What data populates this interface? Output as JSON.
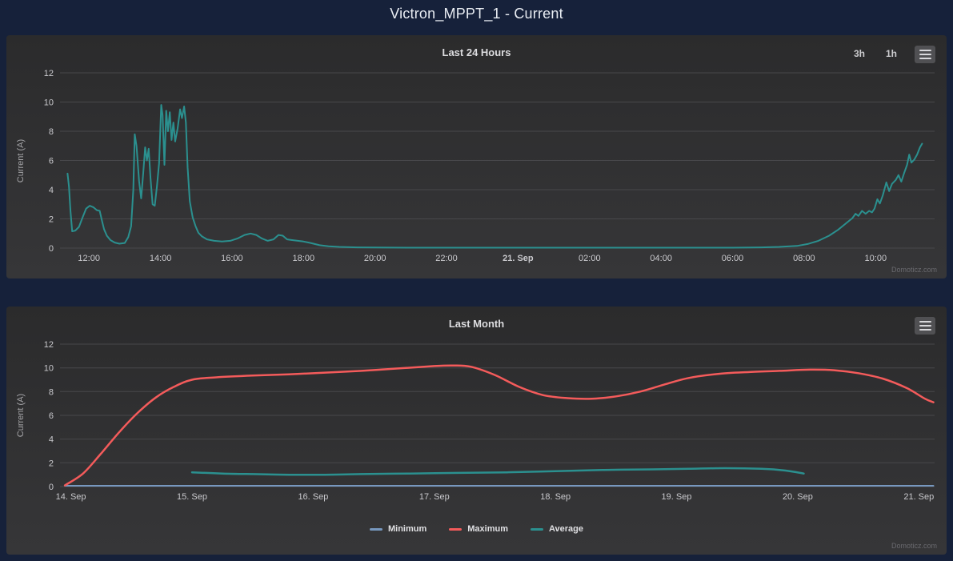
{
  "page": {
    "title": "Victron_MPPT_1 - Current"
  },
  "colors": {
    "page_background": "#16213a",
    "panel_top": "#2b2b2c",
    "panel_bottom": "#363638",
    "grid": "#48484b",
    "tick_label": "#c9c9cd",
    "axis_title": "#a5a5a8",
    "chart_title": "#dcdcdf",
    "page_title": "#e8ecf2",
    "credit": "#6a6a6f",
    "button_text": "#cccccf",
    "context_button_bg": "#505053",
    "context_button_line": "#d8d8db",
    "legend_text": "#e0e0e3",
    "series_teal": "#2b908f",
    "series_red": "#f45b5b",
    "series_blue": "#7798bf"
  },
  "chart_data": [
    {
      "id": "last-24-hours",
      "type": "line",
      "title": "Last 24 Hours",
      "ylabel": "Current (A)",
      "ylim": [
        0,
        12
      ],
      "yticks": [
        0,
        2,
        4,
        6,
        8,
        10,
        12
      ],
      "xlim": [
        11.19,
        35.65
      ],
      "x_unit": "hour-of-timeline",
      "grid": "horizontal",
      "legend": null,
      "credit": "Domoticz.com",
      "range_buttons": [
        "3h",
        "1h"
      ],
      "xticks": [
        {
          "x": 12,
          "label": "12:00"
        },
        {
          "x": 14,
          "label": "14:00"
        },
        {
          "x": 16,
          "label": "16:00"
        },
        {
          "x": 18,
          "label": "18:00"
        },
        {
          "x": 20,
          "label": "20:00"
        },
        {
          "x": 22,
          "label": "22:00"
        },
        {
          "x": 24,
          "label": "21. Sep",
          "bold": true
        },
        {
          "x": 26,
          "label": "02:00"
        },
        {
          "x": 28,
          "label": "04:00"
        },
        {
          "x": 30,
          "label": "06:00"
        },
        {
          "x": 32,
          "label": "08:00"
        },
        {
          "x": 34,
          "label": "10:00"
        }
      ],
      "series": [
        {
          "name": "Current",
          "color": "#2b908f",
          "width": 2,
          "smooth": false,
          "points": [
            [
              11.4,
              5.1
            ],
            [
              11.44,
              4.2
            ],
            [
              11.48,
              2.6
            ],
            [
              11.53,
              1.15
            ],
            [
              11.62,
              1.2
            ],
            [
              11.72,
              1.45
            ],
            [
              11.82,
              2.1
            ],
            [
              11.92,
              2.7
            ],
            [
              12.02,
              2.9
            ],
            [
              12.12,
              2.8
            ],
            [
              12.22,
              2.6
            ],
            [
              12.3,
              2.55
            ],
            [
              12.36,
              1.9
            ],
            [
              12.42,
              1.3
            ],
            [
              12.5,
              0.85
            ],
            [
              12.6,
              0.55
            ],
            [
              12.72,
              0.38
            ],
            [
              12.85,
              0.3
            ],
            [
              13.0,
              0.35
            ],
            [
              13.1,
              0.75
            ],
            [
              13.18,
              1.5
            ],
            [
              13.24,
              4.0
            ],
            [
              13.28,
              7.8
            ],
            [
              13.33,
              7.0
            ],
            [
              13.4,
              4.6
            ],
            [
              13.46,
              3.4
            ],
            [
              13.52,
              5.2
            ],
            [
              13.57,
              6.9
            ],
            [
              13.62,
              6.0
            ],
            [
              13.67,
              6.8
            ],
            [
              13.72,
              4.8
            ],
            [
              13.78,
              3.0
            ],
            [
              13.84,
              2.9
            ],
            [
              13.9,
              4.2
            ],
            [
              13.96,
              5.8
            ],
            [
              14.02,
              9.8
            ],
            [
              14.06,
              9.1
            ],
            [
              14.11,
              5.7
            ],
            [
              14.16,
              9.4
            ],
            [
              14.21,
              8.0
            ],
            [
              14.26,
              9.3
            ],
            [
              14.31,
              7.4
            ],
            [
              14.36,
              8.6
            ],
            [
              14.41,
              7.3
            ],
            [
              14.48,
              8.2
            ],
            [
              14.55,
              9.5
            ],
            [
              14.6,
              8.9
            ],
            [
              14.66,
              9.7
            ],
            [
              14.71,
              8.6
            ],
            [
              14.76,
              5.5
            ],
            [
              14.82,
              3.2
            ],
            [
              14.9,
              2.1
            ],
            [
              14.98,
              1.5
            ],
            [
              15.06,
              1.05
            ],
            [
              15.16,
              0.8
            ],
            [
              15.3,
              0.6
            ],
            [
              15.5,
              0.5
            ],
            [
              15.72,
              0.45
            ],
            [
              15.95,
              0.5
            ],
            [
              16.15,
              0.65
            ],
            [
              16.35,
              0.9
            ],
            [
              16.52,
              1.0
            ],
            [
              16.68,
              0.9
            ],
            [
              16.84,
              0.65
            ],
            [
              17.0,
              0.5
            ],
            [
              17.16,
              0.6
            ],
            [
              17.3,
              0.9
            ],
            [
              17.42,
              0.85
            ],
            [
              17.54,
              0.6
            ],
            [
              17.68,
              0.55
            ],
            [
              17.84,
              0.5
            ],
            [
              18.0,
              0.45
            ],
            [
              18.2,
              0.35
            ],
            [
              18.45,
              0.2
            ],
            [
              18.7,
              0.12
            ],
            [
              19.0,
              0.08
            ],
            [
              19.5,
              0.05
            ],
            [
              20.0,
              0.04
            ],
            [
              21.0,
              0.03
            ],
            [
              22.0,
              0.03
            ],
            [
              23.0,
              0.03
            ],
            [
              24.0,
              0.03
            ],
            [
              25.0,
              0.03
            ],
            [
              26.0,
              0.03
            ],
            [
              27.0,
              0.03
            ],
            [
              28.0,
              0.03
            ],
            [
              29.0,
              0.03
            ],
            [
              30.0,
              0.03
            ],
            [
              30.8,
              0.05
            ],
            [
              31.3,
              0.08
            ],
            [
              31.8,
              0.15
            ],
            [
              32.1,
              0.28
            ],
            [
              32.4,
              0.5
            ],
            [
              32.7,
              0.85
            ],
            [
              32.95,
              1.25
            ],
            [
              33.15,
              1.65
            ],
            [
              33.35,
              2.05
            ],
            [
              33.44,
              2.35
            ],
            [
              33.52,
              2.2
            ],
            [
              33.62,
              2.55
            ],
            [
              33.72,
              2.35
            ],
            [
              33.82,
              2.55
            ],
            [
              33.9,
              2.45
            ],
            [
              33.97,
              2.7
            ],
            [
              34.05,
              3.35
            ],
            [
              34.12,
              3.05
            ],
            [
              34.2,
              3.6
            ],
            [
              34.3,
              4.5
            ],
            [
              34.38,
              3.9
            ],
            [
              34.46,
              4.4
            ],
            [
              34.56,
              4.65
            ],
            [
              34.64,
              5.0
            ],
            [
              34.72,
              4.55
            ],
            [
              34.8,
              5.15
            ],
            [
              34.88,
              5.7
            ],
            [
              34.94,
              6.4
            ],
            [
              35.0,
              5.85
            ],
            [
              35.08,
              6.05
            ],
            [
              35.16,
              6.4
            ],
            [
              35.24,
              6.9
            ],
            [
              35.3,
              7.15
            ]
          ]
        }
      ]
    },
    {
      "id": "last-month",
      "type": "line",
      "title": "Last Month",
      "ylabel": "Current (A)",
      "ylim": [
        0,
        12
      ],
      "yticks": [
        0,
        2,
        4,
        6,
        8,
        10,
        12
      ],
      "xlim": [
        13.91,
        21.13
      ],
      "x_unit": "day-of-september",
      "grid": "horizontal",
      "legend": "bottom",
      "credit": "Domoticz.com",
      "xticks": [
        {
          "x": 14,
          "label": "14. Sep"
        },
        {
          "x": 15,
          "label": "15. Sep"
        },
        {
          "x": 16,
          "label": "16. Sep"
        },
        {
          "x": 17,
          "label": "17. Sep"
        },
        {
          "x": 18,
          "label": "18. Sep"
        },
        {
          "x": 19,
          "label": "19. Sep"
        },
        {
          "x": 20,
          "label": "20. Sep"
        },
        {
          "x": 21,
          "label": "21. Sep"
        }
      ],
      "series": [
        {
          "name": "Minimum",
          "color": "#7798bf",
          "width": 2,
          "smooth": false,
          "points": [
            [
              13.95,
              0.07
            ],
            [
              21.12,
              0.07
            ]
          ]
        },
        {
          "name": "Maximum",
          "color": "#f45b5b",
          "width": 2.5,
          "smooth": true,
          "points": [
            [
              13.95,
              0.1
            ],
            [
              14.1,
              1.1
            ],
            [
              14.25,
              2.8
            ],
            [
              14.4,
              4.6
            ],
            [
              14.55,
              6.2
            ],
            [
              14.7,
              7.5
            ],
            [
              14.85,
              8.4
            ],
            [
              15.0,
              9.0
            ],
            [
              15.2,
              9.2
            ],
            [
              15.5,
              9.35
            ],
            [
              15.8,
              9.45
            ],
            [
              16.1,
              9.6
            ],
            [
              16.4,
              9.75
            ],
            [
              16.7,
              9.95
            ],
            [
              17.0,
              10.15
            ],
            [
              17.15,
              10.2
            ],
            [
              17.3,
              10.1
            ],
            [
              17.5,
              9.4
            ],
            [
              17.7,
              8.4
            ],
            [
              17.9,
              7.7
            ],
            [
              18.1,
              7.45
            ],
            [
              18.3,
              7.4
            ],
            [
              18.5,
              7.6
            ],
            [
              18.7,
              8.0
            ],
            [
              18.9,
              8.6
            ],
            [
              19.1,
              9.15
            ],
            [
              19.35,
              9.5
            ],
            [
              19.6,
              9.65
            ],
            [
              19.85,
              9.75
            ],
            [
              20.1,
              9.85
            ],
            [
              20.3,
              9.8
            ],
            [
              20.5,
              9.55
            ],
            [
              20.7,
              9.1
            ],
            [
              20.9,
              8.3
            ],
            [
              21.05,
              7.4
            ],
            [
              21.12,
              7.1
            ]
          ]
        },
        {
          "name": "Average",
          "color": "#2b908f",
          "width": 2.5,
          "smooth": true,
          "points": [
            [
              15.0,
              1.2
            ],
            [
              15.25,
              1.1
            ],
            [
              15.5,
              1.05
            ],
            [
              15.8,
              1.0
            ],
            [
              16.1,
              1.0
            ],
            [
              16.4,
              1.05
            ],
            [
              16.8,
              1.1
            ],
            [
              17.2,
              1.15
            ],
            [
              17.6,
              1.2
            ],
            [
              18.0,
              1.3
            ],
            [
              18.4,
              1.4
            ],
            [
              18.8,
              1.45
            ],
            [
              19.1,
              1.5
            ],
            [
              19.4,
              1.55
            ],
            [
              19.7,
              1.5
            ],
            [
              19.9,
              1.35
            ],
            [
              20.05,
              1.1
            ]
          ]
        }
      ]
    }
  ]
}
